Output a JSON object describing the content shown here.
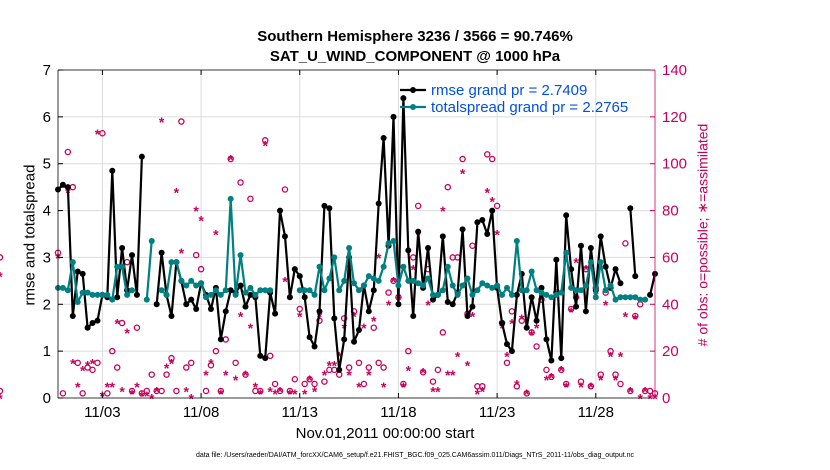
{
  "chart_data": {
    "type": "line",
    "title_line1": "Southern Hemisphere 3236 / 3566 = 90.746%",
    "title_line2": "SAT_U_WIND_COMPONENT @ 1000 hPa",
    "xlabel": "Nov.01,2011 00:00:00 start",
    "ylabel_left": "rmse and totalspread",
    "ylabel_right": "# of obs: o=possible; ∗=assimilated",
    "footer": "data file: /Users/raeder/DAI/ATM_forcXX/CAM6_setup/f.e21.FHIST_BGC.f09_025.CAM6assim.011/Diags_NTrS_2011-11/obs_diag_output.nc",
    "xlim": [
      0.75,
      31.0
    ],
    "ylim_left": [
      0,
      7
    ],
    "ylim_right": [
      0,
      140
    ],
    "xticks": [
      {
        "value": 3,
        "label": "11/03"
      },
      {
        "value": 8,
        "label": "11/08"
      },
      {
        "value": 13,
        "label": "11/13"
      },
      {
        "value": 18,
        "label": "11/18"
      },
      {
        "value": 23,
        "label": "11/23"
      },
      {
        "value": 28,
        "label": "11/28"
      }
    ],
    "yticks_left": [
      "0",
      "1",
      "2",
      "3",
      "4",
      "5",
      "6",
      "7"
    ],
    "yticks_right": [
      "0",
      "20",
      "40",
      "60",
      "80",
      "100",
      "120",
      "140"
    ],
    "colors": {
      "rmse": "#000000",
      "spread": "#008080",
      "obs": "#c8005a",
      "grid": "#dcdcdc",
      "legend_text": "#0050e0"
    },
    "x": [
      0.75,
      1.0,
      1.25,
      1.5,
      1.75,
      2.0,
      2.25,
      2.5,
      2.75,
      3.0,
      3.25,
      3.5,
      3.75,
      4.0,
      4.25,
      4.5,
      4.75,
      5.0,
      5.25,
      5.5,
      5.75,
      6.0,
      6.25,
      6.5,
      6.75,
      7.0,
      7.25,
      7.5,
      7.75,
      8.0,
      8.25,
      8.5,
      8.75,
      9.0,
      9.25,
      9.5,
      9.75,
      10.0,
      10.25,
      10.5,
      10.75,
      11.0,
      11.25,
      11.5,
      11.75,
      12.0,
      12.25,
      12.5,
      12.75,
      13.0,
      13.25,
      13.5,
      13.75,
      14.0,
      14.25,
      14.5,
      14.75,
      15.0,
      15.25,
      15.5,
      15.75,
      16.0,
      16.25,
      16.5,
      16.75,
      17.0,
      17.25,
      17.5,
      17.75,
      18.0,
      18.25,
      18.5,
      18.75,
      19.0,
      19.25,
      19.5,
      19.75,
      20.0,
      20.25,
      20.5,
      20.75,
      21.0,
      21.25,
      21.5,
      21.75,
      22.0,
      22.25,
      22.5,
      22.75,
      23.0,
      23.25,
      23.5,
      23.75,
      24.0,
      24.25,
      24.5,
      24.75,
      25.0,
      25.25,
      25.5,
      25.75,
      26.0,
      26.25,
      26.5,
      26.75,
      27.0,
      27.25,
      27.5,
      27.75,
      28.0,
      28.25,
      28.5,
      28.75,
      29.0,
      29.25,
      29.5,
      29.75,
      30.0,
      30.25,
      30.5,
      30.75,
      31.0
    ],
    "series": [
      {
        "name": "rmse grand pr = 2.7409",
        "key": "rmse",
        "values": [
          4.45,
          4.55,
          4.5,
          1.75,
          2.7,
          2.65,
          1.5,
          1.6,
          1.65,
          2.2,
          2.15,
          4.85,
          2.15,
          3.2,
          2.3,
          3.05,
          2.2,
          5.15,
          null,
          null,
          2.0,
          3.1,
          2.2,
          1.75,
          2.9,
          2.5,
          2.0,
          2.1,
          1.9,
          2.45,
          2.2,
          1.9,
          2.35,
          1.25,
          1.85,
          2.3,
          2.25,
          2.4,
          1.95,
          2.2,
          2.15,
          0.9,
          0.85,
          2.25,
          1.8,
          4.0,
          3.45,
          2.15,
          2.75,
          2.6,
          2.15,
          1.3,
          1.1,
          1.85,
          4.1,
          4.05,
          1.7,
          0.6,
          1.25,
          3.0,
          1.2,
          1.45,
          2.4,
          1.85,
          2.3,
          4.15,
          5.55,
          3.25,
          6.0,
          2.0,
          6.4,
          3.15,
          1.75,
          3.55,
          2.35,
          3.2,
          2.1,
          2.2,
          3.45,
          2.05,
          2.0,
          2.25,
          3.6,
          1.75,
          1.95,
          3.75,
          3.8,
          3.5,
          4.0,
          2.35,
          1.6,
          1.15,
          1.0,
          2.2,
          2.65,
          1.5,
          2.15,
          1.65,
          2.35,
          1.25,
          0.8,
          2.95,
          0.85,
          3.9,
          2.75,
          1.95,
          3.25,
          1.85,
          3.2,
          2.3,
          3.45,
          2.8,
          2.35,
          2.75,
          2.45,
          null,
          4.05,
          2.6,
          null,
          null,
          2.2,
          2.65
        ]
      },
      {
        "name": "totalspread grand pr = 2.2765",
        "key": "spread",
        "values": [
          2.35,
          2.35,
          2.3,
          2.9,
          2.05,
          2.25,
          2.25,
          2.2,
          2.2,
          2.2,
          2.2,
          2.1,
          2.8,
          2.8,
          2.2,
          2.3,
          null,
          null,
          2.1,
          3.35,
          null,
          2.3,
          2.2,
          2.9,
          2.9,
          2.5,
          2.4,
          2.5,
          2.4,
          2.45,
          2.15,
          2.2,
          2.3,
          2.2,
          2.3,
          4.25,
          2.2,
          3.05,
          2.25,
          2.35,
          2.2,
          2.3,
          2.3,
          2.3,
          null,
          null,
          null,
          null,
          null,
          2.3,
          2.3,
          2.3,
          2.2,
          2.8,
          2.3,
          2.55,
          3.0,
          2.3,
          2.5,
          3.2,
          2.45,
          2.3,
          2.4,
          2.6,
          2.55,
          2.5,
          2.8,
          3.3,
          3.35,
          2.4,
          2.8,
          2.5,
          2.5,
          2.45,
          2.4,
          2.55,
          2.2,
          2.2,
          2.3,
          2.8,
          2.4,
          2.2,
          2.4,
          2.55,
          2.2,
          2.3,
          2.45,
          2.4,
          2.35,
          2.4,
          2.2,
          2.35,
          2.2,
          3.35,
          2.3,
          2.3,
          2.7,
          2.3,
          2.25,
          2.2,
          2.15,
          2.2,
          2.25,
          3.1,
          2.35,
          2.3,
          2.3,
          2.4,
          2.9,
          2.15,
          2.9,
          2.3,
          2.4,
          2.1,
          2.15,
          2.15,
          2.15,
          2.15,
          2.1,
          2.1,
          null,
          null
        ]
      }
    ],
    "obs_possible": [
      62,
      2,
      105,
      90,
      15,
      2,
      13,
      12,
      15,
      113,
      2,
      20,
      13,
      32,
      58,
      3,
      30,
      2,
      3,
      10,
      3,
      3,
      10,
      17,
      3,
      118,
      13,
      15,
      61,
      55,
      3,
      14,
      20,
      3,
      25,
      102,
      15,
      92,
      10,
      85,
      3,
      3,
      110,
      18,
      6,
      3,
      89,
      3,
      8,
      38,
      6,
      8,
      6,
      33,
      7,
      12,
      12,
      10,
      34,
      13,
      37,
      15,
      6,
      13,
      30,
      15,
      13,
      45,
      50,
      43,
      6,
      20,
      60,
      82,
      11,
      55,
      7,
      12,
      28,
      90,
      60,
      60,
      102,
      36,
      65,
      5,
      5,
      104,
      102,
      82,
      32,
      15,
      37,
      5,
      33,
      2,
      28,
      22,
      42,
      12,
      9,
      45,
      12,
      6,
      38,
      43,
      7,
      55,
      5,
      47,
      10,
      45,
      20,
      10,
      6,
      66,
      3,
      35,
      40,
      3,
      3,
      2,
      60,
      3
    ],
    "obs_assimilated": [
      60,
      90,
      88,
      15,
      5,
      12,
      14,
      15,
      113,
      1,
      5,
      5,
      32,
      3,
      28,
      2,
      5,
      1,
      1,
      0,
      3,
      118,
      13,
      15,
      88,
      62,
      3,
      0,
      80,
      76,
      10,
      15,
      70,
      2,
      10,
      102,
      8,
      35,
      10,
      30,
      5,
      2,
      108,
      3,
      2,
      3,
      50,
      2,
      2,
      35,
      2,
      8,
      3,
      35,
      10,
      14,
      14,
      18,
      30,
      10,
      35,
      5,
      30,
      10,
      33,
      60,
      5,
      40,
      50,
      43,
      5,
      12,
      55,
      70,
      11,
      40,
      3,
      3,
      80,
      10,
      10,
      18,
      96,
      14,
      35,
      2,
      3,
      88,
      84,
      70,
      30,
      18,
      32,
      6,
      34,
      2,
      27,
      30,
      42,
      8,
      9,
      44,
      12,
      5,
      37,
      58,
      5,
      55,
      5,
      44,
      8,
      40,
      18,
      8,
      18,
      35,
      3,
      34,
      0,
      3,
      0,
      0,
      52,
      0
    ]
  }
}
